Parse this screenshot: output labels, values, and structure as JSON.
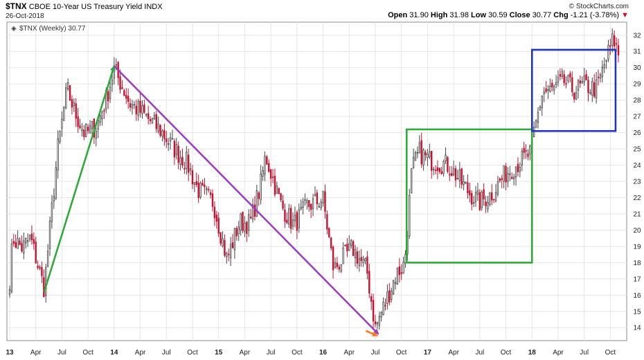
{
  "header": {
    "symbol": "$TNX",
    "name": "CBOE 10-Year US Treasury Yield",
    "exchange": "INDX",
    "date": "26-Oct-2018",
    "brand": "© StockCharts.com",
    "open_label": "Open",
    "open": "31.90",
    "high_label": "High",
    "high": "31.98",
    "low_label": "Low",
    "low": "30.59",
    "close_label": "Close",
    "close": "30.77",
    "chg_label": "Chg",
    "chg": "-1.21 (-3.78%)"
  },
  "legend": {
    "text": "$TNX (Weekly) 30.77"
  },
  "colors": {
    "up": "#444444",
    "down": "#c8102e",
    "green": "#2eaa3a",
    "purple": "#9b3fc2",
    "blue": "#2233bb",
    "orange": "#ff7a1a",
    "grid": "#e6e6e6"
  },
  "chart_data": {
    "type": "candlestick",
    "title": "$TNX CBOE 10-Year US Treasury Yield INDX",
    "series_name": "$TNX (Weekly) 30.77",
    "x_ticks": [
      {
        "label": "13",
        "t": 2013.0,
        "year": true
      },
      {
        "label": "Apr",
        "t": 2013.25
      },
      {
        "label": "Jul",
        "t": 2013.5
      },
      {
        "label": "Oct",
        "t": 2013.75
      },
      {
        "label": "14",
        "t": 2014.0,
        "year": true
      },
      {
        "label": "Apr",
        "t": 2014.25
      },
      {
        "label": "Jul",
        "t": 2014.5
      },
      {
        "label": "Oct",
        "t": 2014.75
      },
      {
        "label": "15",
        "t": 2015.0,
        "year": true
      },
      {
        "label": "Apr",
        "t": 2015.25
      },
      {
        "label": "Jul",
        "t": 2015.5
      },
      {
        "label": "Oct",
        "t": 2015.75
      },
      {
        "label": "16",
        "t": 2016.0,
        "year": true
      },
      {
        "label": "Apr",
        "t": 2016.25
      },
      {
        "label": "Jul",
        "t": 2016.5
      },
      {
        "label": "Oct",
        "t": 2016.75
      },
      {
        "label": "17",
        "t": 2017.0,
        "year": true
      },
      {
        "label": "Apr",
        "t": 2017.25
      },
      {
        "label": "Jul",
        "t": 2017.5
      },
      {
        "label": "Oct",
        "t": 2017.75
      },
      {
        "label": "18",
        "t": 2018.0,
        "year": true
      },
      {
        "label": "Apr",
        "t": 2018.25
      },
      {
        "label": "Jul",
        "t": 2018.5
      },
      {
        "label": "Oct",
        "t": 2018.75
      }
    ],
    "y_ticks": [
      14,
      15,
      16,
      17,
      18,
      19,
      20,
      21,
      22,
      23,
      24,
      25,
      26,
      27,
      28,
      29,
      30,
      31,
      32
    ],
    "x_range": [
      2013.0,
      2018.86
    ],
    "y_range": [
      13.2,
      32.8
    ],
    "anchors": [
      [
        2013.0,
        17.0
      ],
      [
        2013.03,
        19.5
      ],
      [
        2013.12,
        18.9
      ],
      [
        2013.2,
        19.5
      ],
      [
        2013.33,
        16.4
      ],
      [
        2013.46,
        25.0
      ],
      [
        2013.55,
        28.7
      ],
      [
        2013.62,
        27.3
      ],
      [
        2013.72,
        25.9
      ],
      [
        2013.83,
        26.4
      ],
      [
        2013.92,
        28.0
      ],
      [
        2014.0,
        29.9
      ],
      [
        2014.15,
        27.8
      ],
      [
        2014.25,
        27.3
      ],
      [
        2014.45,
        26.1
      ],
      [
        2014.55,
        25.2
      ],
      [
        2014.7,
        24.1
      ],
      [
        2014.8,
        22.5
      ],
      [
        2014.95,
        21.7
      ],
      [
        2015.08,
        18.2
      ],
      [
        2015.2,
        20.5
      ],
      [
        2015.3,
        20.4
      ],
      [
        2015.4,
        22.7
      ],
      [
        2015.45,
        24.6
      ],
      [
        2015.6,
        21.5
      ],
      [
        2015.72,
        20.3
      ],
      [
        2015.85,
        21.5
      ],
      [
        2016.0,
        21.9
      ],
      [
        2016.1,
        17.6
      ],
      [
        2016.28,
        18.9
      ],
      [
        2016.42,
        17.5
      ],
      [
        2016.5,
        14.0
      ],
      [
        2016.6,
        15.6
      ],
      [
        2016.7,
        17.3
      ],
      [
        2016.78,
        17.9
      ],
      [
        2016.85,
        23.7
      ],
      [
        2016.92,
        24.8
      ],
      [
        2017.02,
        24.3
      ],
      [
        2017.2,
        24.0
      ],
      [
        2017.4,
        22.3
      ],
      [
        2017.5,
        21.7
      ],
      [
        2017.62,
        22.3
      ],
      [
        2017.75,
        23.5
      ],
      [
        2017.9,
        24.3
      ],
      [
        2017.98,
        24.7
      ],
      [
        2018.1,
        28.5
      ],
      [
        2018.2,
        28.6
      ],
      [
        2018.3,
        29.2
      ],
      [
        2018.4,
        28.6
      ],
      [
        2018.5,
        28.9
      ],
      [
        2018.62,
        28.7
      ],
      [
        2018.72,
        30.7
      ],
      [
        2018.78,
        31.8
      ],
      [
        2018.83,
        30.77
      ]
    ],
    "annotations": [
      {
        "type": "arrow",
        "color": "green",
        "from": [
          2013.33,
          16.2
        ],
        "to": [
          2014.0,
          30.1
        ]
      },
      {
        "type": "arrow",
        "color": "purple",
        "from": [
          2014.0,
          30.1
        ],
        "to": [
          2016.53,
          13.6
        ]
      },
      {
        "type": "arrow",
        "color": "orange",
        "from": [
          2016.41,
          13.8
        ],
        "to": [
          2016.52,
          13.5
        ]
      },
      {
        "type": "rect",
        "color": "green",
        "t0": 2016.8,
        "t1": 2018.0,
        "y0": 18.0,
        "y1": 26.2
      },
      {
        "type": "rect",
        "color": "blue",
        "t0": 2018.0,
        "t1": 2018.8,
        "y0": 26.1,
        "y1": 31.1
      }
    ]
  }
}
